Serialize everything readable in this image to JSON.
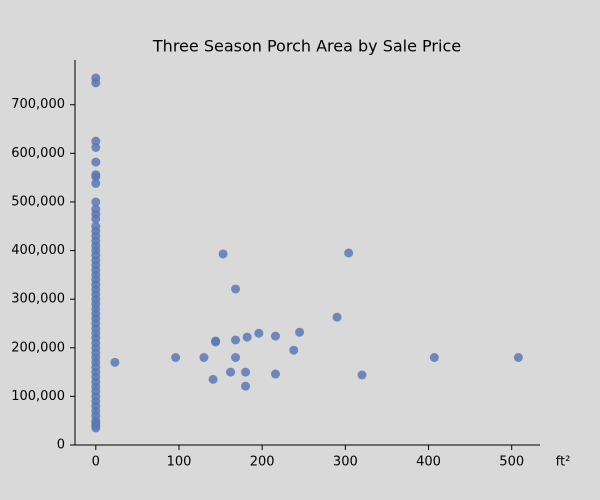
{
  "chart_data": {
    "type": "scatter",
    "title": "Three Season Porch Area by Sale Price",
    "x_label": "ft²",
    "color": "#5a78b4",
    "x": [
      0,
      0,
      0,
      0,
      0,
      0,
      0,
      0,
      0,
      0,
      0,
      0,
      0,
      0,
      0,
      0,
      0,
      0,
      0,
      0,
      0,
      0,
      0,
      0,
      0,
      0,
      0,
      0,
      0,
      0,
      0,
      0,
      0,
      0,
      0,
      0,
      0,
      0,
      0,
      0,
      0,
      0,
      0,
      0,
      0,
      0,
      0,
      0,
      0,
      0,
      0,
      0,
      0,
      0,
      0,
      0,
      23,
      96,
      130,
      141,
      144,
      144,
      153,
      162,
      168,
      168,
      168,
      180,
      180,
      182,
      196,
      216,
      216,
      238,
      245,
      290,
      304,
      320,
      407,
      508
    ],
    "values": [
      755000,
      745000,
      625000,
      612000,
      582000,
      556000,
      552000,
      538000,
      500000,
      485000,
      475000,
      465000,
      450000,
      440000,
      430000,
      420000,
      410000,
      400000,
      390000,
      380000,
      370000,
      360000,
      350000,
      340000,
      330000,
      320000,
      310000,
      300000,
      290000,
      280000,
      270000,
      260000,
      250000,
      240000,
      230000,
      220000,
      210000,
      200000,
      190000,
      180000,
      170000,
      160000,
      150000,
      140000,
      130000,
      120000,
      110000,
      100000,
      90000,
      80000,
      70000,
      60000,
      50000,
      45000,
      40000,
      35000,
      170000,
      180000,
      180000,
      135000,
      214000,
      212000,
      393000,
      150000,
      321000,
      216000,
      180000,
      150000,
      121000,
      222000,
      230000,
      224000,
      146000,
      195000,
      232000,
      263000,
      395000,
      144000,
      180000,
      180000
    ],
    "xlim": [
      -25,
      534
    ],
    "ylim": [
      0,
      792000
    ],
    "xticks": [
      0,
      100,
      200,
      300,
      400,
      500
    ],
    "yticks": [
      0,
      {
        "value": 100000,
        "label": "100,000"
      },
      {
        "value": 200000,
        "label": "200,000"
      },
      {
        "value": 300000,
        "label": "300,000"
      },
      {
        "value": 400000,
        "label": "400,000"
      },
      {
        "value": 500000,
        "label": "500,000"
      },
      {
        "value": 600000,
        "label": "600,000"
      },
      {
        "value": 700000,
        "label": "700,000"
      }
    ]
  }
}
